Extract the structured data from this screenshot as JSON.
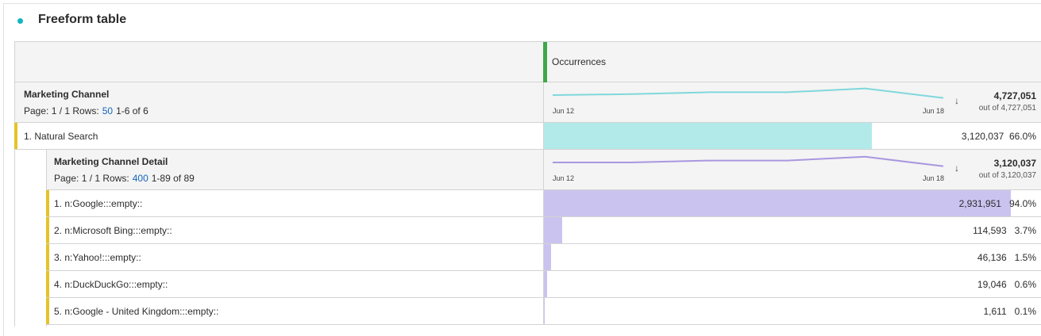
{
  "title": "Freeform table",
  "header": {
    "metric": "Occurrences"
  },
  "dimension": {
    "name": "Marketing Channel",
    "page_label": "Page: 1 / 1 Rows:",
    "rows_per_page": "50",
    "range": "1-6 of 6",
    "total": "4,727,051",
    "out_of": "out of 4,727,051",
    "axis_start": "Jun 12",
    "axis_end": "Jun 18",
    "trend": [
      20,
      21,
      23,
      23,
      27,
      17
    ],
    "color": "#7fd8dc"
  },
  "row1": {
    "label": "1.  Natural Search",
    "value": "3,120,037",
    "percent": "66.0%",
    "fraction": 0.66,
    "color": "#b2eaea"
  },
  "breakdown": {
    "name": "Marketing Channel Detail",
    "page_label": "Page: 1 / 1 Rows:",
    "rows_per_page": "400",
    "range": "1-89 of 89",
    "total": "3,120,037",
    "out_of": "out of 3,120,037",
    "axis_start": "Jun 12",
    "axis_end": "Jun 18",
    "trend": [
      20,
      20,
      22,
      22,
      26,
      16
    ],
    "color": "#a997e0",
    "bar_color": "#cbc3ef",
    "rows": [
      {
        "label": "1.  n:Google:::empty::",
        "value": "2,931,951",
        "percent": "94.0%",
        "fraction": 0.94
      },
      {
        "label": "2.  n:Microsoft Bing:::empty::",
        "value": "114,593",
        "percent": "3.7%",
        "fraction": 0.037
      },
      {
        "label": "3.  n:Yahoo!:::empty::",
        "value": "46,136",
        "percent": "1.5%",
        "fraction": 0.015
      },
      {
        "label": "4.  n:DuckDuckGo:::empty::",
        "value": "19,046",
        "percent": "0.6%",
        "fraction": 0.006
      },
      {
        "label": "5.  n:Google - United Kingdom:::empty::",
        "value": "1,611",
        "percent": "0.1%",
        "fraction": 0.001
      }
    ]
  }
}
